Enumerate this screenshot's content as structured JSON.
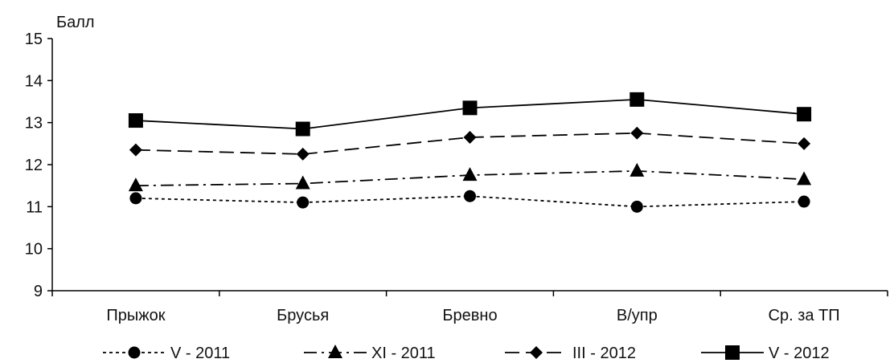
{
  "chart_data": {
    "type": "line",
    "title": "",
    "ylabel": "Балл",
    "xlabel": "",
    "ylim": [
      9,
      15
    ],
    "yticks": [
      9,
      10,
      11,
      12,
      13,
      14,
      15
    ],
    "categories": [
      "Прыжок",
      "Брусья",
      "Бревно",
      "В/упр",
      "Ср. за ТП"
    ],
    "grid": false,
    "legend_position": "bottom",
    "series": [
      {
        "name": "V - 2011",
        "values": [
          11.2,
          11.1,
          11.25,
          11.0,
          11.12
        ],
        "marker": "circle",
        "dash": "dotted",
        "color": "#000000"
      },
      {
        "name": "XI - 2011",
        "values": [
          11.5,
          11.55,
          11.75,
          11.85,
          11.65
        ],
        "marker": "triangle",
        "dash": "dash-dot",
        "color": "#000000"
      },
      {
        "name": "III - 2012",
        "values": [
          12.35,
          12.25,
          12.65,
          12.75,
          12.5
        ],
        "marker": "diamond",
        "dash": "dashed",
        "color": "#000000"
      },
      {
        "name": "V - 2012",
        "values": [
          13.05,
          12.85,
          13.35,
          13.55,
          13.2
        ],
        "marker": "square",
        "dash": "solid",
        "color": "#000000"
      }
    ]
  }
}
